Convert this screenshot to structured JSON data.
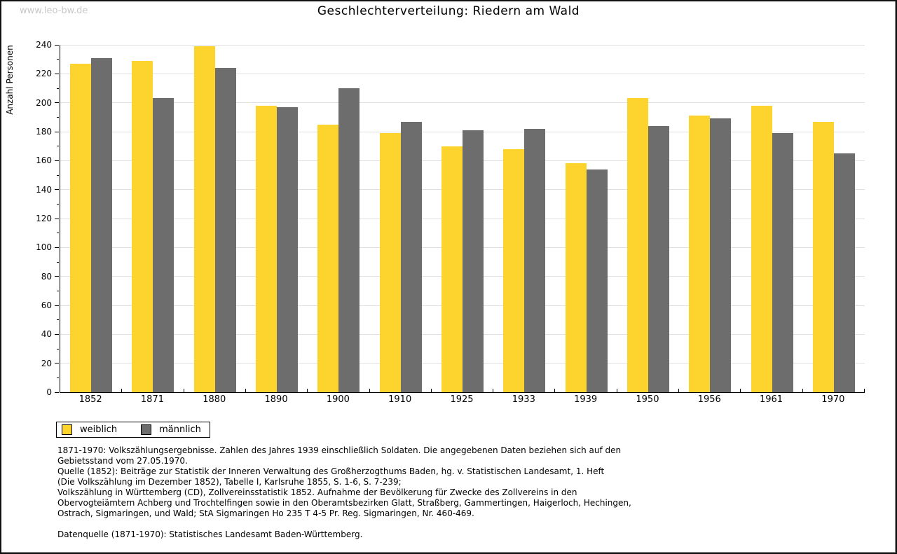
{
  "watermark": "www.leo-bw.de",
  "title": "Geschlechterverteilung: Riedern am Wald",
  "chart_data": {
    "type": "bar",
    "title": "Geschlechterverteilung: Riedern am Wald",
    "xlabel": "",
    "ylabel": "Anzahl Personen",
    "ylim": [
      0,
      240
    ],
    "ytick_step": 20,
    "ytick_minor_step": 10,
    "grid": "horizontal",
    "legend_position": "bottom-left",
    "categories": [
      "1852",
      "1871",
      "1880",
      "1890",
      "1900",
      "1910",
      "1925",
      "1933",
      "1939",
      "1950",
      "1956",
      "1961",
      "1970"
    ],
    "series": [
      {
        "name": "weiblich",
        "color": "#FDD42E",
        "values": [
          227,
          229,
          239,
          198,
          185,
          179,
          170,
          168,
          158,
          203,
          191,
          198,
          187
        ]
      },
      {
        "name": "männlich",
        "color": "#6D6D6D",
        "values": [
          231,
          203,
          224,
          197,
          210,
          187,
          181,
          182,
          154,
          184,
          189,
          179,
          165
        ]
      }
    ]
  },
  "colors": {
    "gridline": "#E0E0E0",
    "axis": "#000000",
    "watermark_text": "#C8C8C8"
  },
  "footer": {
    "lines": [
      "1871-1970: Volkszählungsergebnisse. Zahlen des Jahres 1939 einschließlich Soldaten. Die angegebenen Daten beziehen sich auf den",
      "Gebietsstand vom 27.05.1970.",
      "Quelle (1852): Beiträge zur Statistik der Inneren Verwaltung des Großherzogthums Baden, hg. v. Statistischen Landesamt, 1. Heft",
      "(Die Volkszählung im Dezember 1852), Tabelle I, Karlsruhe 1855, S. 1-6, S. 7-239;",
      "Volkszählung in Württemberg (CD), Zollvereinsstatistik 1852. Aufnahme der Bevölkerung für Zwecke des Zollvereins in den",
      "Obervogteiämtern Achberg und Trochtelfingen sowie in den Oberamtsbezirken Glatt, Straßberg, Gammertingen, Haigerloch, Hechingen,",
      "Ostrach, Sigmaringen, und Wald; StA Sigmaringen Ho 235 T 4-5 Pr. Reg. Sigmaringen, Nr. 460-469."
    ],
    "datasource": "Datenquelle (1871-1970): Statistisches Landesamt Baden-Württemberg."
  }
}
